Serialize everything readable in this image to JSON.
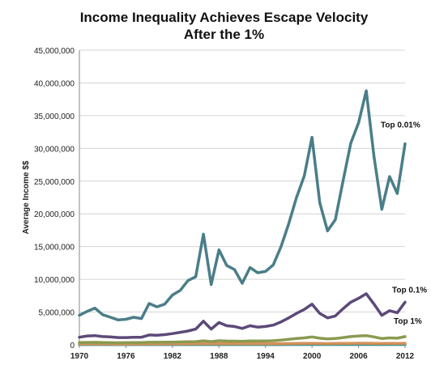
{
  "chart_data": {
    "type": "line",
    "title": [
      "Income Inequality Achieves Escape Velocity",
      "After the 1%"
    ],
    "xlabel": "",
    "ylabel": "Average Income $$",
    "xlim": [
      1970,
      2012
    ],
    "ylim": [
      0,
      45000000
    ],
    "x_ticks": [
      1970,
      1976,
      1982,
      1988,
      1994,
      2000,
      2006,
      2012
    ],
    "y_ticks": [
      0,
      5000000,
      10000000,
      15000000,
      20000000,
      25000000,
      30000000,
      35000000,
      40000000,
      45000000
    ],
    "y_tick_labels": [
      "0",
      "5,000,000",
      "10,000,000",
      "15,000,000",
      "20,000,000",
      "25,000,000",
      "30,000,000",
      "35,000,000",
      "40,000,000",
      "45,000,000"
    ],
    "grid": "horizontal",
    "x": [
      1970,
      1971,
      1972,
      1973,
      1974,
      1975,
      1976,
      1977,
      1978,
      1979,
      1980,
      1981,
      1982,
      1983,
      1984,
      1985,
      1986,
      1987,
      1988,
      1989,
      1990,
      1991,
      1992,
      1993,
      1994,
      1995,
      1996,
      1997,
      1998,
      1999,
      2000,
      2001,
      2002,
      2003,
      2004,
      2005,
      2006,
      2007,
      2008,
      2009,
      2010,
      2011,
      2012
    ],
    "series": [
      {
        "name": "Top 0.01%",
        "color": "#4a7e88",
        "values": [
          4500000,
          5100000,
          5600000,
          4600000,
          4200000,
          3800000,
          3900000,
          4200000,
          4000000,
          6300000,
          5800000,
          6200000,
          7600000,
          8300000,
          9800000,
          10400000,
          16900000,
          9200000,
          14500000,
          12100000,
          11500000,
          9400000,
          11800000,
          11000000,
          11200000,
          12200000,
          15000000,
          18500000,
          22500000,
          25800000,
          31700000,
          21700000,
          17400000,
          19100000,
          25000000,
          30800000,
          33900000,
          38800000,
          28700000,
          20700000,
          25700000,
          23100000,
          30700000
        ]
      },
      {
        "name": "Top 0.1%",
        "color": "#5c4a78",
        "values": [
          1150000,
          1350000,
          1400000,
          1250000,
          1200000,
          1100000,
          1100000,
          1150000,
          1150000,
          1500000,
          1450000,
          1550000,
          1700000,
          1900000,
          2100000,
          2400000,
          3600000,
          2400000,
          3400000,
          2900000,
          2800000,
          2500000,
          2900000,
          2700000,
          2800000,
          3000000,
          3500000,
          4100000,
          4800000,
          5400000,
          6200000,
          4800000,
          4100000,
          4400000,
          5500000,
          6500000,
          7100000,
          7800000,
          6200000,
          4500000,
          5200000,
          4900000,
          6500000
        ]
      },
      {
        "name": "Top 1%",
        "color": "#8a9a50",
        "values": [
          330000,
          360000,
          370000,
          340000,
          320000,
          310000,
          320000,
          330000,
          330000,
          380000,
          380000,
          390000,
          410000,
          430000,
          460000,
          480000,
          600000,
          480000,
          620000,
          570000,
          560000,
          520000,
          580000,
          570000,
          580000,
          620000,
          720000,
          830000,
          950000,
          1050000,
          1200000,
          1000000,
          900000,
          950000,
          1100000,
          1250000,
          1350000,
          1400000,
          1200000,
          950000,
          1050000,
          1000000,
          1250000
        ]
      },
      {
        "color": "#d4915a",
        "values": [
          120000,
          125000,
          125000,
          120000,
          118000,
          115000,
          117000,
          120000,
          120000,
          130000,
          128000,
          130000,
          135000,
          140000,
          145000,
          150000,
          165000,
          150000,
          165000,
          160000,
          158000,
          152000,
          160000,
          158000,
          160000,
          165000,
          175000,
          185000,
          195000,
          205000,
          220000,
          200000,
          190000,
          195000,
          210000,
          225000,
          235000,
          240000,
          220000,
          195000,
          205000,
          200000,
          220000
        ]
      },
      {
        "color": "#3e8e8e",
        "values": [
          35000,
          36000,
          36000,
          35000,
          34000,
          33000,
          34000,
          34000,
          34000,
          36000,
          35000,
          35000,
          36000,
          37000,
          38000,
          39000,
          41000,
          38000,
          41000,
          40000,
          40000,
          39000,
          40000,
          40000,
          40000,
          41000,
          42000,
          44000,
          46000,
          47000,
          49000,
          46000,
          44000,
          45000,
          47000,
          49000,
          50000,
          51000,
          48000,
          45000,
          46000,
          45000,
          47000
        ]
      }
    ],
    "annotations": [
      {
        "text": "Top 0.01%",
        "series": 0
      },
      {
        "text": "Top 0.1%",
        "series": 1
      },
      {
        "text": "Top 1%",
        "series": 2
      }
    ]
  }
}
